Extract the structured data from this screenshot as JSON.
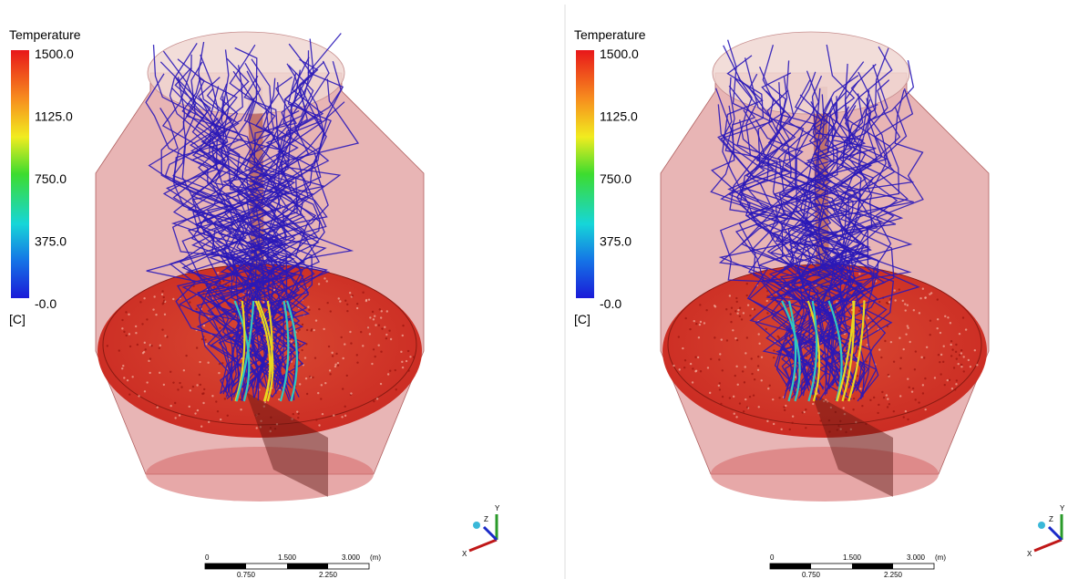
{
  "panels": [
    {
      "legend": {
        "title": "Temperature",
        "labels": [
          "1500.0",
          "1125.0",
          "750.0",
          "375.0",
          "-0.0"
        ],
        "unit": "[C]"
      },
      "scale": {
        "top": [
          "0",
          "1.500",
          "3.000",
          "(m)"
        ],
        "bottom": [
          "0.750",
          "2.250"
        ]
      },
      "triad": [
        "Y",
        "Z",
        "X"
      ]
    },
    {
      "legend": {
        "title": "Temperature",
        "labels": [
          "1500.0",
          "1125.0",
          "750.0",
          "375.0",
          "-0.0"
        ],
        "unit": "[C]"
      },
      "scale": {
        "top": [
          "0",
          "1.500",
          "3.000",
          "(m)"
        ],
        "bottom": [
          "0.750",
          "2.250"
        ]
      },
      "triad": [
        "Y",
        "Z",
        "X"
      ]
    }
  ]
}
